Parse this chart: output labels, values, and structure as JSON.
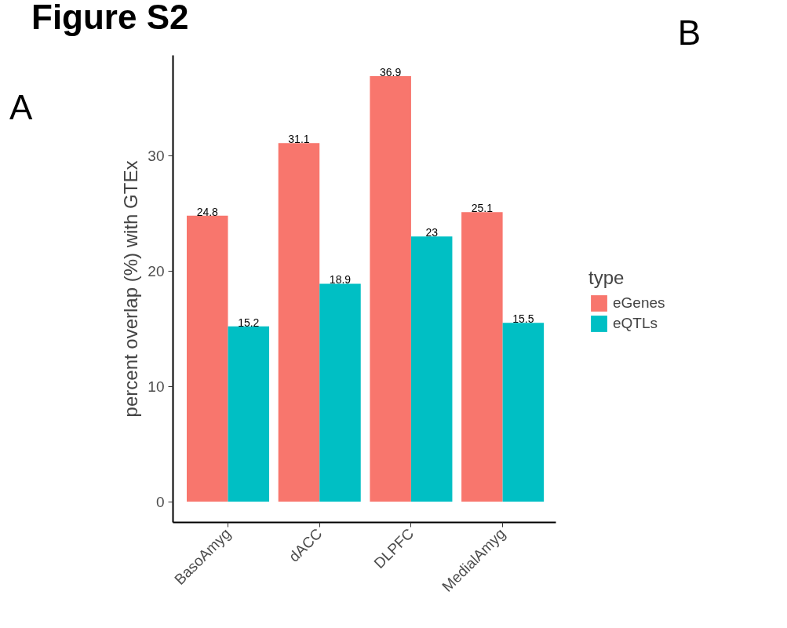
{
  "chart_data": {
    "type": "bar",
    "title": "Figure S2",
    "ylabel": "percent overlap (%) with GTEx",
    "legend_title": "type",
    "categories": [
      "BasoAmyg",
      "dACC",
      "DLPFC",
      "MedialAmyg"
    ],
    "series": [
      {
        "name": "eGenes",
        "color": "#f8766d",
        "values": [
          24.8,
          31.1,
          36.9,
          25.1
        ]
      },
      {
        "name": "eQTLs",
        "color": "#00bfc4",
        "values": [
          15.2,
          18.9,
          23,
          15.5
        ]
      }
    ],
    "ylim": [
      -1.8,
      38.7
    ],
    "yticks": [
      0,
      10,
      20,
      30
    ],
    "data_labels": true,
    "grid": false,
    "legend": "right",
    "annotations": [
      "A",
      "B"
    ]
  }
}
